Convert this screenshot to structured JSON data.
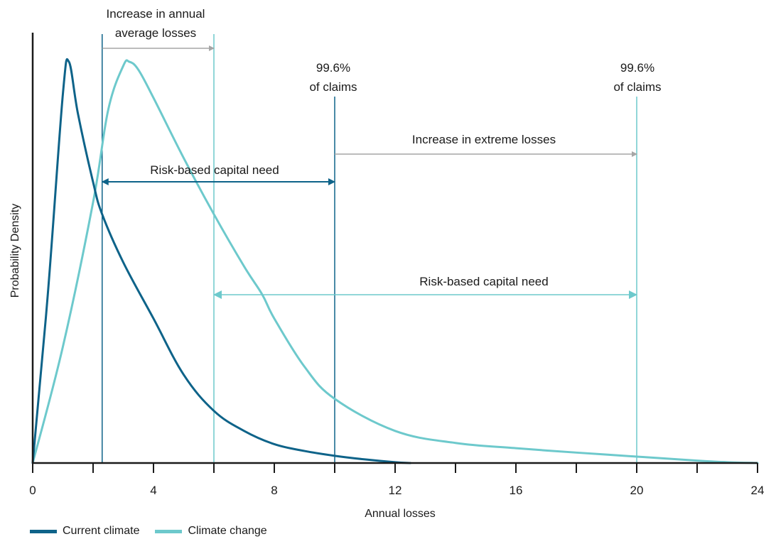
{
  "chart_data": {
    "type": "line",
    "xlabel": "Annual losses",
    "ylabel": "Probability Density",
    "xlim": [
      0,
      24
    ],
    "x_tick_labels": [
      "0",
      "4",
      "8",
      "12",
      "16",
      "20",
      "24"
    ],
    "x_tick_values": [
      0,
      4,
      8,
      12,
      16,
      20,
      24
    ],
    "x_minor_ticks": [
      2,
      6,
      10,
      14,
      18,
      22
    ],
    "grid": false,
    "legend_position": "bottom-left",
    "series": [
      {
        "name": "Current climate",
        "color": "#0e6389",
        "x": [
          0,
          0.5,
          1.0,
          1.2,
          1.5,
          2.0,
          2.3,
          3.0,
          4.0,
          5.0,
          6.0,
          7.0,
          8.0,
          9.0,
          10.0,
          11.0,
          12.0,
          12.5
        ],
        "y": [
          0,
          0.42,
          0.92,
          1.0,
          0.87,
          0.7,
          0.62,
          0.5,
          0.36,
          0.22,
          0.13,
          0.08,
          0.047,
          0.03,
          0.018,
          0.009,
          0.002,
          0.0
        ]
      },
      {
        "name": "Climate change",
        "color": "#6dc9cc",
        "x": [
          0,
          1.0,
          2.0,
          2.5,
          3.0,
          3.2,
          3.5,
          4.0,
          5.0,
          6.0,
          7.0,
          7.6,
          8.0,
          9.0,
          10.0,
          12.0,
          14.0,
          16.0,
          18.0,
          20.0,
          22.0,
          23.0,
          24.0
        ],
        "y": [
          0,
          0.29,
          0.65,
          0.88,
          0.99,
          1.0,
          0.98,
          0.91,
          0.76,
          0.62,
          0.49,
          0.42,
          0.36,
          0.24,
          0.16,
          0.08,
          0.05,
          0.037,
          0.026,
          0.016,
          0.006,
          0.002,
          0.0
        ]
      }
    ],
    "vertical_lines": [
      {
        "x": 2.3,
        "color": "#0e6389"
      },
      {
        "x": 6.0,
        "color": "#6dc9cc"
      },
      {
        "x": 10.0,
        "color": "#0e6389"
      },
      {
        "x": 20.0,
        "color": "#6dc9cc"
      }
    ],
    "annotations": [
      {
        "id": "inc-avg",
        "lines": [
          "Increase in annual",
          "average losses"
        ],
        "arrow_from": 2.3,
        "arrow_to": 6.0,
        "arrow_color": "#a6a6a6",
        "style": "one-way"
      },
      {
        "id": "claims-current",
        "lines": [
          "99.6%",
          "of claims"
        ],
        "x": 10.0
      },
      {
        "id": "claims-change",
        "lines": [
          "99.6%",
          "of claims"
        ],
        "x": 20.0
      },
      {
        "id": "inc-extreme",
        "lines": [
          "Increase in extreme losses"
        ],
        "arrow_from": 10.0,
        "arrow_to": 20.0,
        "arrow_color": "#a6a6a6",
        "style": "one-way"
      },
      {
        "id": "rbcn-current",
        "lines": [
          "Risk-based capital need"
        ],
        "arrow_from": 2.3,
        "arrow_to": 10.0,
        "arrow_color": "#0e6389",
        "style": "two-way"
      },
      {
        "id": "rbcn-change",
        "lines": [
          "Risk-based capital need"
        ],
        "arrow_from": 6.0,
        "arrow_to": 20.0,
        "arrow_color": "#6dc9cc",
        "style": "two-way"
      }
    ]
  },
  "legend": [
    {
      "label": "Current climate",
      "color": "#0e6389"
    },
    {
      "label": "Climate change",
      "color": "#6dc9cc"
    }
  ]
}
